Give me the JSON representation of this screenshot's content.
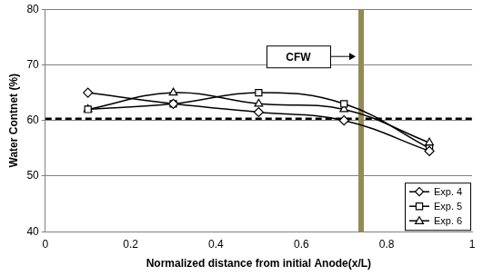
{
  "chart_data": {
    "type": "line",
    "x_label": "Normalized distance from initial Anode(x/L)",
    "y_label": "Water Contnet (%)",
    "x": [
      0.1,
      0.3,
      0.5,
      0.7,
      0.9
    ],
    "series": [
      {
        "name": "Exp. 4",
        "color": "#000000",
        "marker": "diamond",
        "values": [
          65,
          63,
          61.5,
          60,
          54.5
        ]
      },
      {
        "name": "Exp. 5",
        "color": "#000000",
        "marker": "square",
        "values": [
          62,
          63,
          65,
          63,
          55
        ]
      },
      {
        "name": "Exp. 6",
        "color": "#000000",
        "marker": "triangle",
        "values": [
          62,
          65,
          63,
          62,
          56
        ]
      }
    ],
    "xlim": [
      0,
      1
    ],
    "xticks": [
      0,
      0.2,
      0.4,
      0.6,
      0.8,
      1
    ],
    "ylim": [
      40,
      80
    ],
    "yticks": [
      40,
      50,
      60,
      70,
      80
    ],
    "grid": "y",
    "legend": "lower right",
    "hlines": [
      {
        "y": 60.3,
        "color": "#000000",
        "line_style": "dashed"
      }
    ],
    "vlines": [
      {
        "x": 0.74,
        "label": "CFW",
        "color": "#948a54"
      }
    ]
  }
}
